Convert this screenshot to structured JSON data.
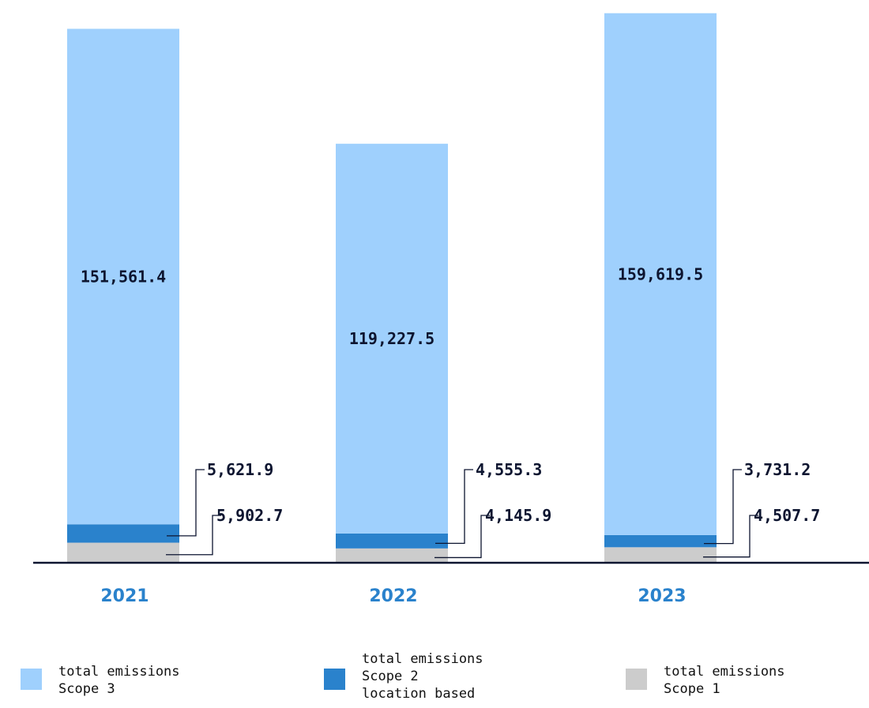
{
  "chart_data": {
    "type": "bar",
    "stacked": true,
    "categories": [
      "2021",
      "2022",
      "2023"
    ],
    "series": [
      {
        "name": "total emissions Scope 1",
        "color": "#cccccc",
        "values": [
          5902.7,
          4145.9,
          4507.7
        ],
        "labels": [
          "5,902.7",
          "4,145.9",
          "4,507.7"
        ]
      },
      {
        "name": "total emissions Scope 2 location based",
        "color": "#2a82cc",
        "values": [
          5621.9,
          4555.3,
          3731.2
        ],
        "labels": [
          "5,621.9",
          "4,555.3",
          "3,731.2"
        ]
      },
      {
        "name": "total emissions Scope 3",
        "color": "#9fd0fd",
        "values": [
          151561.4,
          119227.5,
          159619.5
        ],
        "labels": [
          "151,561.4",
          "119,227.5",
          "159,619.5"
        ]
      }
    ],
    "title": "",
    "xlabel": "",
    "ylabel": "",
    "grid": false,
    "legend_position": "bottom",
    "ylim": [
      0,
      169000
    ]
  },
  "legend": [
    {
      "color": "#9fd0fd",
      "lines": [
        "total emissions",
        "Scope 3"
      ]
    },
    {
      "color": "#2a82cc",
      "lines": [
        "total emissions",
        "Scope 2",
        "location based"
      ]
    },
    {
      "color": "#cccccc",
      "lines": [
        "total emissions",
        "Scope 1"
      ]
    }
  ]
}
